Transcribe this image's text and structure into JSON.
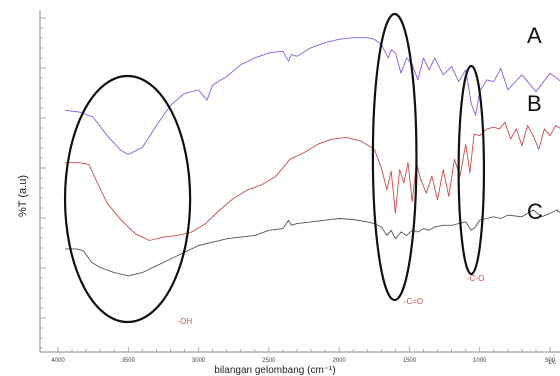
{
  "chart_data": {
    "type": "line",
    "xlabel": "bilangan gelombang (cm⁻¹)",
    "ylabel": "%T (a.u)",
    "x_ticks": [
      4000,
      3500,
      3000,
      2500,
      2000,
      1500,
      1000,
      500
    ],
    "x_tick_labels": [
      "4000",
      "3500",
      "3000",
      "2500",
      "2000",
      "1500",
      "1000",
      "500"
    ],
    "xlim": [
      4000,
      400
    ],
    "x_reversed": true,
    "grid": false,
    "series": [
      {
        "name": "A",
        "color": "#8a5cf0",
        "points": [
          [
            3950,
            0.285
          ],
          [
            3850,
            0.29
          ],
          [
            3750,
            0.305
          ],
          [
            3650,
            0.36
          ],
          [
            3550,
            0.405
          ],
          [
            3500,
            0.415
          ],
          [
            3400,
            0.395
          ],
          [
            3300,
            0.33
          ],
          [
            3200,
            0.27
          ],
          [
            3100,
            0.235
          ],
          [
            3000,
            0.225
          ],
          [
            2940,
            0.255
          ],
          [
            2900,
            0.21
          ],
          [
            2800,
            0.185
          ],
          [
            2700,
            0.15
          ],
          [
            2600,
            0.13
          ],
          [
            2500,
            0.115
          ],
          [
            2400,
            0.11
          ],
          [
            2360,
            0.14
          ],
          [
            2340,
            0.12
          ],
          [
            2300,
            0.125
          ],
          [
            2200,
            0.1
          ],
          [
            2100,
            0.085
          ],
          [
            2000,
            0.075
          ],
          [
            1900,
            0.07
          ],
          [
            1800,
            0.07
          ],
          [
            1750,
            0.075
          ],
          [
            1700,
            0.09
          ],
          [
            1650,
            0.13
          ],
          [
            1630,
            0.105
          ],
          [
            1600,
            0.115
          ],
          [
            1560,
            0.175
          ],
          [
            1520,
            0.13
          ],
          [
            1480,
            0.15
          ],
          [
            1440,
            0.195
          ],
          [
            1400,
            0.13
          ],
          [
            1360,
            0.165
          ],
          [
            1320,
            0.13
          ],
          [
            1260,
            0.18
          ],
          [
            1200,
            0.155
          ],
          [
            1150,
            0.2
          ],
          [
            1100,
            0.165
          ],
          [
            1060,
            0.265
          ],
          [
            1030,
            0.3
          ],
          [
            1000,
            0.23
          ],
          [
            950,
            0.195
          ],
          [
            900,
            0.2
          ],
          [
            850,
            0.16
          ],
          [
            800,
            0.225
          ],
          [
            700,
            0.18
          ],
          [
            600,
            0.23
          ],
          [
            500,
            0.175
          ],
          [
            420,
            0.2
          ]
        ]
      },
      {
        "name": "B",
        "color": "#d24a4a",
        "points": [
          [
            3950,
            0.44
          ],
          [
            3850,
            0.44
          ],
          [
            3780,
            0.445
          ],
          [
            3720,
            0.5
          ],
          [
            3650,
            0.56
          ],
          [
            3550,
            0.61
          ],
          [
            3450,
            0.65
          ],
          [
            3350,
            0.67
          ],
          [
            3250,
            0.66
          ],
          [
            3150,
            0.655
          ],
          [
            3050,
            0.645
          ],
          [
            2950,
            0.62
          ],
          [
            2850,
            0.58
          ],
          [
            2750,
            0.545
          ],
          [
            2650,
            0.52
          ],
          [
            2550,
            0.505
          ],
          [
            2450,
            0.48
          ],
          [
            2350,
            0.43
          ],
          [
            2250,
            0.41
          ],
          [
            2150,
            0.385
          ],
          [
            2050,
            0.37
          ],
          [
            1950,
            0.365
          ],
          [
            1850,
            0.375
          ],
          [
            1750,
            0.4
          ],
          [
            1700,
            0.455
          ],
          [
            1660,
            0.52
          ],
          [
            1630,
            0.465
          ],
          [
            1600,
            0.59
          ],
          [
            1570,
            0.46
          ],
          [
            1540,
            0.5
          ],
          [
            1510,
            0.44
          ],
          [
            1480,
            0.555
          ],
          [
            1450,
            0.44
          ],
          [
            1420,
            0.49
          ],
          [
            1380,
            0.53
          ],
          [
            1340,
            0.48
          ],
          [
            1300,
            0.55
          ],
          [
            1260,
            0.46
          ],
          [
            1220,
            0.54
          ],
          [
            1180,
            0.43
          ],
          [
            1140,
            0.48
          ],
          [
            1100,
            0.385
          ],
          [
            1070,
            0.47
          ],
          [
            1040,
            0.355
          ],
          [
            1000,
            0.36
          ],
          [
            950,
            0.34
          ],
          [
            900,
            0.335
          ],
          [
            860,
            0.34
          ],
          [
            820,
            0.32
          ],
          [
            780,
            0.37
          ],
          [
            740,
            0.34
          ],
          [
            700,
            0.39
          ],
          [
            660,
            0.33
          ],
          [
            620,
            0.36
          ],
          [
            580,
            0.4
          ],
          [
            540,
            0.34
          ],
          [
            500,
            0.36
          ],
          [
            460,
            0.33
          ],
          [
            420,
            0.34
          ]
        ]
      },
      {
        "name": "C",
        "color": "#555555",
        "points": [
          [
            3950,
            0.695
          ],
          [
            3870,
            0.695
          ],
          [
            3820,
            0.7
          ],
          [
            3760,
            0.735
          ],
          [
            3700,
            0.75
          ],
          [
            3600,
            0.765
          ],
          [
            3500,
            0.775
          ],
          [
            3400,
            0.765
          ],
          [
            3300,
            0.745
          ],
          [
            3200,
            0.725
          ],
          [
            3100,
            0.705
          ],
          [
            3000,
            0.685
          ],
          [
            2900,
            0.675
          ],
          [
            2800,
            0.665
          ],
          [
            2700,
            0.66
          ],
          [
            2600,
            0.655
          ],
          [
            2500,
            0.64
          ],
          [
            2400,
            0.635
          ],
          [
            2360,
            0.61
          ],
          [
            2340,
            0.625
          ],
          [
            2300,
            0.62
          ],
          [
            2200,
            0.615
          ],
          [
            2100,
            0.61
          ],
          [
            2000,
            0.605
          ],
          [
            1900,
            0.608
          ],
          [
            1800,
            0.615
          ],
          [
            1750,
            0.62
          ],
          [
            1700,
            0.63
          ],
          [
            1660,
            0.655
          ],
          [
            1630,
            0.64
          ],
          [
            1600,
            0.665
          ],
          [
            1560,
            0.645
          ],
          [
            1520,
            0.655
          ],
          [
            1480,
            0.64
          ],
          [
            1440,
            0.645
          ],
          [
            1400,
            0.635
          ],
          [
            1360,
            0.64
          ],
          [
            1320,
            0.63
          ],
          [
            1260,
            0.625
          ],
          [
            1200,
            0.625
          ],
          [
            1150,
            0.62
          ],
          [
            1100,
            0.615
          ],
          [
            1060,
            0.64
          ],
          [
            1030,
            0.63
          ],
          [
            1000,
            0.61
          ],
          [
            950,
            0.605
          ],
          [
            900,
            0.6
          ],
          [
            850,
            0.605
          ],
          [
            800,
            0.595
          ],
          [
            700,
            0.6
          ],
          [
            620,
            0.58
          ],
          [
            560,
            0.6
          ],
          [
            500,
            0.59
          ],
          [
            450,
            0.58
          ],
          [
            420,
            0.59
          ]
        ]
      }
    ],
    "series_labels": [
      {
        "text": "A",
        "series": "A"
      },
      {
        "text": "B",
        "series": "B"
      },
      {
        "text": "C",
        "series": "C"
      }
    ],
    "annotations": [
      {
        "text": "-OH",
        "color": "#d24a4a",
        "region_x": [
          3950,
          3060
        ],
        "label_x": 3150
      },
      {
        "text": "-C=O",
        "color": "#d24a4a",
        "region_x": [
          1760,
          1450
        ],
        "label_x": 1540
      },
      {
        "text": "-C-O",
        "color": "#d24a4a",
        "region_x": [
          1150,
          970
        ],
        "label_x": 1090
      }
    ],
    "ellipse_color": "#111111",
    "axis_unit_cut": "1/c"
  }
}
